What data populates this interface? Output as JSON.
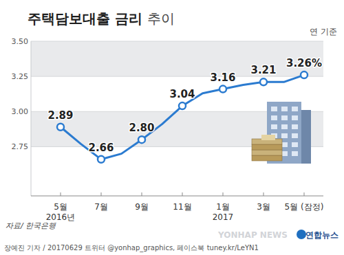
{
  "chart_data": {
    "type": "line",
    "title": "주택담보대출 금리 추이",
    "unit_note": "연 기준",
    "source": "자료/ 한국은행",
    "credit": "장예진 기자 / 20170629 트위터 @yonhap_graphics, 페이스북 tuney.kr/LeYN1",
    "logo": "연합뉴스",
    "watermark": "YONHAP NEWS",
    "categories": [
      "5월\n2016년",
      null,
      "7월",
      null,
      "9월",
      null,
      "11월",
      null,
      "1월\n2017",
      null,
      "3월",
      null,
      "5월 (잠정)"
    ],
    "values": [
      2.89,
      2.77,
      2.66,
      2.7,
      2.8,
      2.91,
      3.04,
      3.13,
      3.16,
      3.19,
      3.21,
      3.21,
      3.26
    ],
    "value_labels": [
      "2.89",
      null,
      "2.66",
      null,
      "2.80",
      null,
      "3.04",
      null,
      "3.16",
      null,
      "3.21",
      null,
      "3.26%"
    ],
    "color": "#2b7bd0",
    "marker": "circle",
    "ylim": [
      2.4,
      3.5
    ],
    "yticks": [
      2.75,
      {
        "value": 3,
        "label": "3.00"
      },
      {
        "value": 3.25,
        "label": "3.25"
      },
      {
        "value": 3.5,
        "label": "3.50"
      }
    ],
    "grid": true,
    "data_labels": true
  }
}
